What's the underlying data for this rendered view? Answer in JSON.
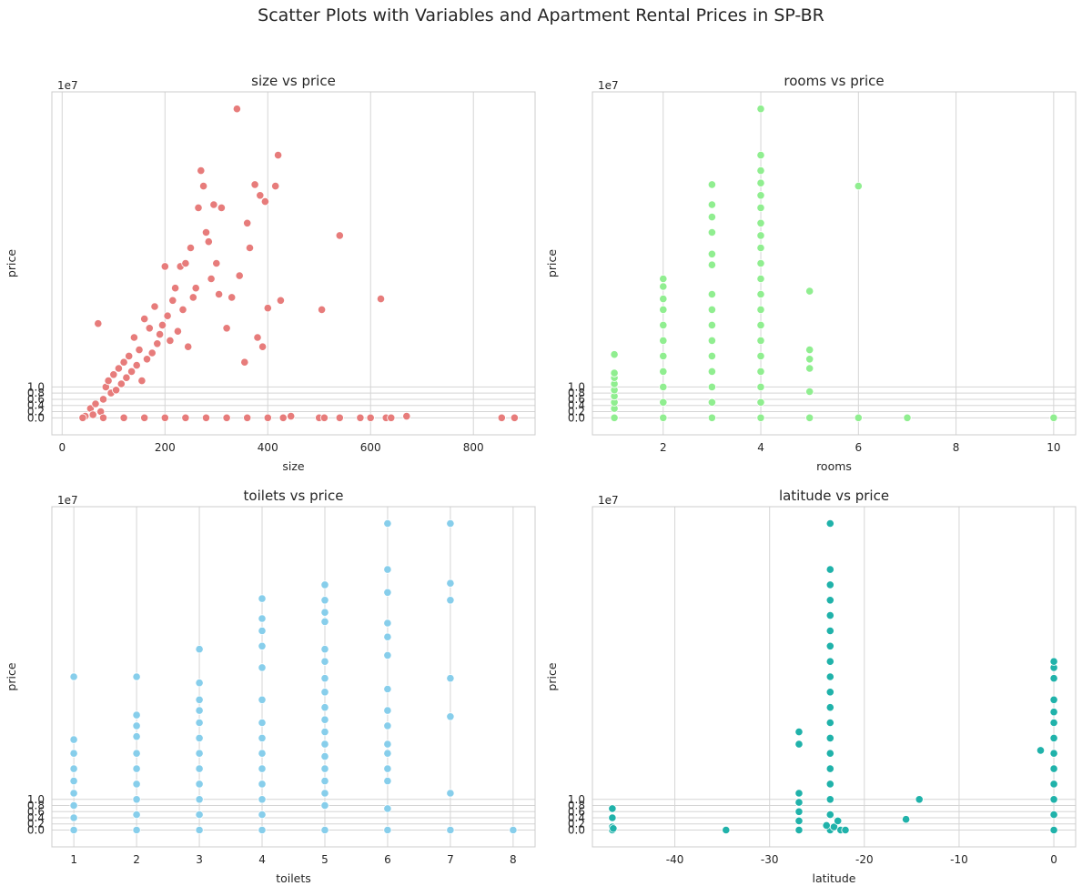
{
  "figure": {
    "title": "Scatter Plots with Variables and Apartment Rental Prices in SP-BR"
  },
  "chart_data": [
    {
      "type": "scatter",
      "title": "size vs price",
      "xlabel": "size",
      "ylabel": "price",
      "y_offset_label": "1e7",
      "xlim": [
        -20,
        920
      ],
      "ylim": [
        -0.55,
        10.55
      ],
      "xticks": [
        0,
        200,
        400,
        600,
        800
      ],
      "yticks": [
        0.0,
        0.2,
        0.4,
        0.6,
        0.8,
        1.0
      ],
      "color": "#e77c7b",
      "units": "price in 1e7",
      "points": [
        [
          45,
          0.05
        ],
        [
          55,
          0.3
        ],
        [
          60,
          0.1
        ],
        [
          65,
          0.45
        ],
        [
          70,
          3.05
        ],
        [
          75,
          0.2
        ],
        [
          80,
          0.6
        ],
        [
          85,
          1.0
        ],
        [
          90,
          1.2
        ],
        [
          95,
          0.8
        ],
        [
          100,
          1.4
        ],
        [
          105,
          0.9
        ],
        [
          110,
          1.6
        ],
        [
          115,
          1.1
        ],
        [
          120,
          1.8
        ],
        [
          125,
          1.3
        ],
        [
          130,
          2.0
        ],
        [
          135,
          1.5
        ],
        [
          140,
          2.6
        ],
        [
          145,
          1.7
        ],
        [
          150,
          2.2
        ],
        [
          155,
          1.2
        ],
        [
          160,
          3.2
        ],
        [
          165,
          1.9
        ],
        [
          170,
          2.9
        ],
        [
          175,
          2.1
        ],
        [
          180,
          3.6
        ],
        [
          185,
          2.4
        ],
        [
          190,
          2.7
        ],
        [
          195,
          3.0
        ],
        [
          200,
          4.9
        ],
        [
          205,
          3.3
        ],
        [
          210,
          2.5
        ],
        [
          215,
          3.8
        ],
        [
          220,
          4.2
        ],
        [
          225,
          2.8
        ],
        [
          230,
          4.9
        ],
        [
          235,
          3.5
        ],
        [
          240,
          5.0
        ],
        [
          245,
          2.3
        ],
        [
          250,
          5.5
        ],
        [
          255,
          3.9
        ],
        [
          260,
          4.2
        ],
        [
          265,
          6.8
        ],
        [
          270,
          8.0
        ],
        [
          275,
          7.5
        ],
        [
          280,
          6.0
        ],
        [
          285,
          5.7
        ],
        [
          290,
          4.5
        ],
        [
          295,
          6.9
        ],
        [
          300,
          5.0
        ],
        [
          305,
          4.0
        ],
        [
          310,
          6.8
        ],
        [
          320,
          2.9
        ],
        [
          330,
          3.9
        ],
        [
          340,
          10.0
        ],
        [
          345,
          4.6
        ],
        [
          355,
          1.8
        ],
        [
          360,
          6.3
        ],
        [
          365,
          5.5
        ],
        [
          375,
          7.55
        ],
        [
          380,
          2.6
        ],
        [
          385,
          7.2
        ],
        [
          390,
          2.3
        ],
        [
          395,
          7.0
        ],
        [
          400,
          3.55
        ],
        [
          415,
          7.5
        ],
        [
          420,
          8.5
        ],
        [
          425,
          3.8
        ],
        [
          505,
          3.5
        ],
        [
          540,
          5.9
        ],
        [
          620,
          3.85
        ],
        [
          40,
          0.0
        ],
        [
          80,
          0.0
        ],
        [
          120,
          0.0
        ],
        [
          160,
          0.0
        ],
        [
          200,
          0.0
        ],
        [
          240,
          0.0
        ],
        [
          280,
          0.0
        ],
        [
          320,
          0.0
        ],
        [
          360,
          0.0
        ],
        [
          400,
          0.0
        ],
        [
          430,
          0.0
        ],
        [
          445,
          0.05
        ],
        [
          500,
          0.0
        ],
        [
          510,
          0.0
        ],
        [
          540,
          0.0
        ],
        [
          580,
          0.0
        ],
        [
          600,
          0.0
        ],
        [
          630,
          0.0
        ],
        [
          640,
          0.0
        ],
        [
          670,
          0.05
        ],
        [
          855,
          0.0
        ],
        [
          880,
          0.0
        ]
      ]
    },
    {
      "type": "scatter",
      "title": "rooms vs price",
      "xlabel": "rooms",
      "ylabel": "price",
      "y_offset_label": "1e7",
      "xlim": [
        0.55,
        10.45
      ],
      "ylim": [
        -0.55,
        10.55
      ],
      "xticks": [
        2,
        4,
        6,
        8,
        10
      ],
      "yticks": [
        0.0,
        0.2,
        0.4,
        0.6,
        0.8,
        1.0
      ],
      "color": "#90ee90",
      "units": "price in 1e7",
      "points": [
        [
          1,
          0.0
        ],
        [
          1,
          0.3
        ],
        [
          1,
          0.5
        ],
        [
          1,
          0.7
        ],
        [
          1,
          0.9
        ],
        [
          1,
          1.1
        ],
        [
          1,
          1.3
        ],
        [
          1,
          1.45
        ],
        [
          1,
          2.05
        ],
        [
          2,
          0.0
        ],
        [
          2,
          0.5
        ],
        [
          2,
          1.0
        ],
        [
          2,
          1.5
        ],
        [
          2,
          2.0
        ],
        [
          2,
          2.5
        ],
        [
          2,
          3.0
        ],
        [
          2,
          3.5
        ],
        [
          2,
          3.85
        ],
        [
          2,
          4.25
        ],
        [
          2,
          4.5
        ],
        [
          3,
          0.0
        ],
        [
          3,
          0.5
        ],
        [
          3,
          1.0
        ],
        [
          3,
          1.5
        ],
        [
          3,
          2.0
        ],
        [
          3,
          2.5
        ],
        [
          3,
          3.0
        ],
        [
          3,
          3.5
        ],
        [
          3,
          4.0
        ],
        [
          3,
          4.95
        ],
        [
          3,
          5.3
        ],
        [
          3,
          6.0
        ],
        [
          3,
          6.5
        ],
        [
          3,
          6.9
        ],
        [
          3,
          7.55
        ],
        [
          4,
          0.0
        ],
        [
          4,
          0.5
        ],
        [
          4,
          1.0
        ],
        [
          4,
          1.5
        ],
        [
          4,
          2.0
        ],
        [
          4,
          2.5
        ],
        [
          4,
          3.0
        ],
        [
          4,
          3.5
        ],
        [
          4,
          4.0
        ],
        [
          4,
          4.5
        ],
        [
          4,
          5.0
        ],
        [
          4,
          5.5
        ],
        [
          4,
          5.9
        ],
        [
          4,
          6.3
        ],
        [
          4,
          6.8
        ],
        [
          4,
          7.2
        ],
        [
          4,
          7.6
        ],
        [
          4,
          8.0
        ],
        [
          4,
          8.5
        ],
        [
          4,
          10.0
        ],
        [
          5,
          0.0
        ],
        [
          5,
          0.85
        ],
        [
          5,
          1.6
        ],
        [
          5,
          1.9
        ],
        [
          5,
          2.2
        ],
        [
          5,
          4.1
        ],
        [
          6,
          0.0
        ],
        [
          6,
          7.5
        ],
        [
          7,
          0.0
        ],
        [
          10,
          0.0
        ]
      ]
    },
    {
      "type": "scatter",
      "title": "toilets vs price",
      "xlabel": "toilets",
      "ylabel": "price",
      "y_offset_label": "1e7",
      "xlim": [
        0.65,
        8.35
      ],
      "ylim": [
        -0.55,
        10.55
      ],
      "xticks": [
        1,
        2,
        3,
        4,
        5,
        6,
        7,
        8
      ],
      "yticks": [
        0.0,
        0.2,
        0.4,
        0.6,
        0.8,
        1.0
      ],
      "color": "#87ceeb",
      "units": "price in 1e7",
      "points": [
        [
          1,
          0.0
        ],
        [
          1,
          0.4
        ],
        [
          1,
          0.8
        ],
        [
          1,
          1.2
        ],
        [
          1,
          1.6
        ],
        [
          1,
          2.0
        ],
        [
          1,
          2.5
        ],
        [
          1,
          2.95
        ],
        [
          1,
          5.0
        ],
        [
          2,
          0.0
        ],
        [
          2,
          0.5
        ],
        [
          2,
          1.0
        ],
        [
          2,
          1.5
        ],
        [
          2,
          2.0
        ],
        [
          2,
          2.5
        ],
        [
          2,
          3.05
        ],
        [
          2,
          3.4
        ],
        [
          2,
          3.75
        ],
        [
          2,
          5.0
        ],
        [
          3,
          0.0
        ],
        [
          3,
          0.5
        ],
        [
          3,
          1.0
        ],
        [
          3,
          1.5
        ],
        [
          3,
          2.0
        ],
        [
          3,
          2.5
        ],
        [
          3,
          3.0
        ],
        [
          3,
          3.5
        ],
        [
          3,
          3.9
        ],
        [
          3,
          4.25
        ],
        [
          3,
          4.8
        ],
        [
          3,
          5.9
        ],
        [
          4,
          0.0
        ],
        [
          4,
          0.5
        ],
        [
          4,
          1.0
        ],
        [
          4,
          1.5
        ],
        [
          4,
          2.0
        ],
        [
          4,
          2.5
        ],
        [
          4,
          3.0
        ],
        [
          4,
          3.5
        ],
        [
          4,
          4.25
        ],
        [
          4,
          5.3
        ],
        [
          4,
          6.0
        ],
        [
          4,
          6.5
        ],
        [
          4,
          6.9
        ],
        [
          4,
          7.55
        ],
        [
          5,
          0.0
        ],
        [
          5,
          0.8
        ],
        [
          5,
          1.2
        ],
        [
          5,
          1.6
        ],
        [
          5,
          2.0
        ],
        [
          5,
          2.4
        ],
        [
          5,
          2.8
        ],
        [
          5,
          3.2
        ],
        [
          5,
          3.6
        ],
        [
          5,
          4.0
        ],
        [
          5,
          4.5
        ],
        [
          5,
          4.95
        ],
        [
          5,
          5.5
        ],
        [
          5,
          5.9
        ],
        [
          5,
          6.8
        ],
        [
          5,
          7.1
        ],
        [
          5,
          7.5
        ],
        [
          5,
          8.0
        ],
        [
          6,
          0.0
        ],
        [
          6,
          0.7
        ],
        [
          6,
          1.6
        ],
        [
          6,
          2.0
        ],
        [
          6,
          2.5
        ],
        [
          6,
          2.8
        ],
        [
          6,
          3.4
        ],
        [
          6,
          3.9
        ],
        [
          6,
          4.6
        ],
        [
          6,
          5.7
        ],
        [
          6,
          6.3
        ],
        [
          6,
          6.75
        ],
        [
          6,
          7.75
        ],
        [
          6,
          8.5
        ],
        [
          6,
          10.0
        ],
        [
          7,
          0.0
        ],
        [
          7,
          1.2
        ],
        [
          7,
          3.7
        ],
        [
          7,
          4.95
        ],
        [
          7,
          7.5
        ],
        [
          7,
          8.05
        ],
        [
          7,
          10.0
        ],
        [
          8,
          0.0
        ]
      ]
    },
    {
      "type": "scatter",
      "title": "latitude vs price",
      "xlabel": "latitude",
      "ylabel": "price",
      "y_offset_label": "1e7",
      "xlim": [
        -48.7,
        2.3
      ],
      "ylim": [
        -0.55,
        10.55
      ],
      "xticks": [
        -40,
        -30,
        -20,
        -10,
        0
      ],
      "yticks": [
        0.0,
        0.2,
        0.4,
        0.6,
        0.8,
        1.0
      ],
      "color": "#20b2aa",
      "units": "price in 1e7",
      "points": [
        [
          -46.6,
          0.0
        ],
        [
          -46.6,
          0.1
        ],
        [
          -46.6,
          0.4
        ],
        [
          -46.6,
          0.7
        ],
        [
          -46.5,
          0.05
        ],
        [
          -34.6,
          0.0
        ],
        [
          -26.9,
          0.0
        ],
        [
          -26.9,
          0.3
        ],
        [
          -26.9,
          0.6
        ],
        [
          -26.9,
          0.9
        ],
        [
          -26.9,
          1.2
        ],
        [
          -26.9,
          2.8
        ],
        [
          -26.9,
          3.2
        ],
        [
          -23.6,
          0.0
        ],
        [
          -23.6,
          0.5
        ],
        [
          -23.6,
          1.0
        ],
        [
          -23.6,
          1.5
        ],
        [
          -23.6,
          2.0
        ],
        [
          -23.6,
          2.5
        ],
        [
          -23.6,
          3.0
        ],
        [
          -23.6,
          3.5
        ],
        [
          -23.6,
          4.0
        ],
        [
          -23.6,
          4.5
        ],
        [
          -23.6,
          5.0
        ],
        [
          -23.6,
          5.5
        ],
        [
          -23.6,
          6.0
        ],
        [
          -23.6,
          6.5
        ],
        [
          -23.6,
          7.0
        ],
        [
          -23.6,
          7.5
        ],
        [
          -23.6,
          8.0
        ],
        [
          -23.6,
          8.5
        ],
        [
          -23.6,
          10.0
        ],
        [
          -23.2,
          0.1
        ],
        [
          -22.8,
          0.3
        ],
        [
          -22.5,
          0.0
        ],
        [
          -22.0,
          0.0
        ],
        [
          -24.0,
          0.15
        ],
        [
          -15.6,
          0.35
        ],
        [
          -14.2,
          1.0
        ],
        [
          -1.4,
          2.6
        ],
        [
          0,
          0.0
        ],
        [
          0,
          0.5
        ],
        [
          0,
          1.0
        ],
        [
          0,
          1.5
        ],
        [
          0,
          2.0
        ],
        [
          0,
          2.5
        ],
        [
          0,
          3.0
        ],
        [
          0,
          3.5
        ],
        [
          0,
          3.85
        ],
        [
          0,
          4.25
        ],
        [
          0,
          4.95
        ],
        [
          0,
          5.3
        ],
        [
          0,
          5.5
        ]
      ]
    }
  ]
}
